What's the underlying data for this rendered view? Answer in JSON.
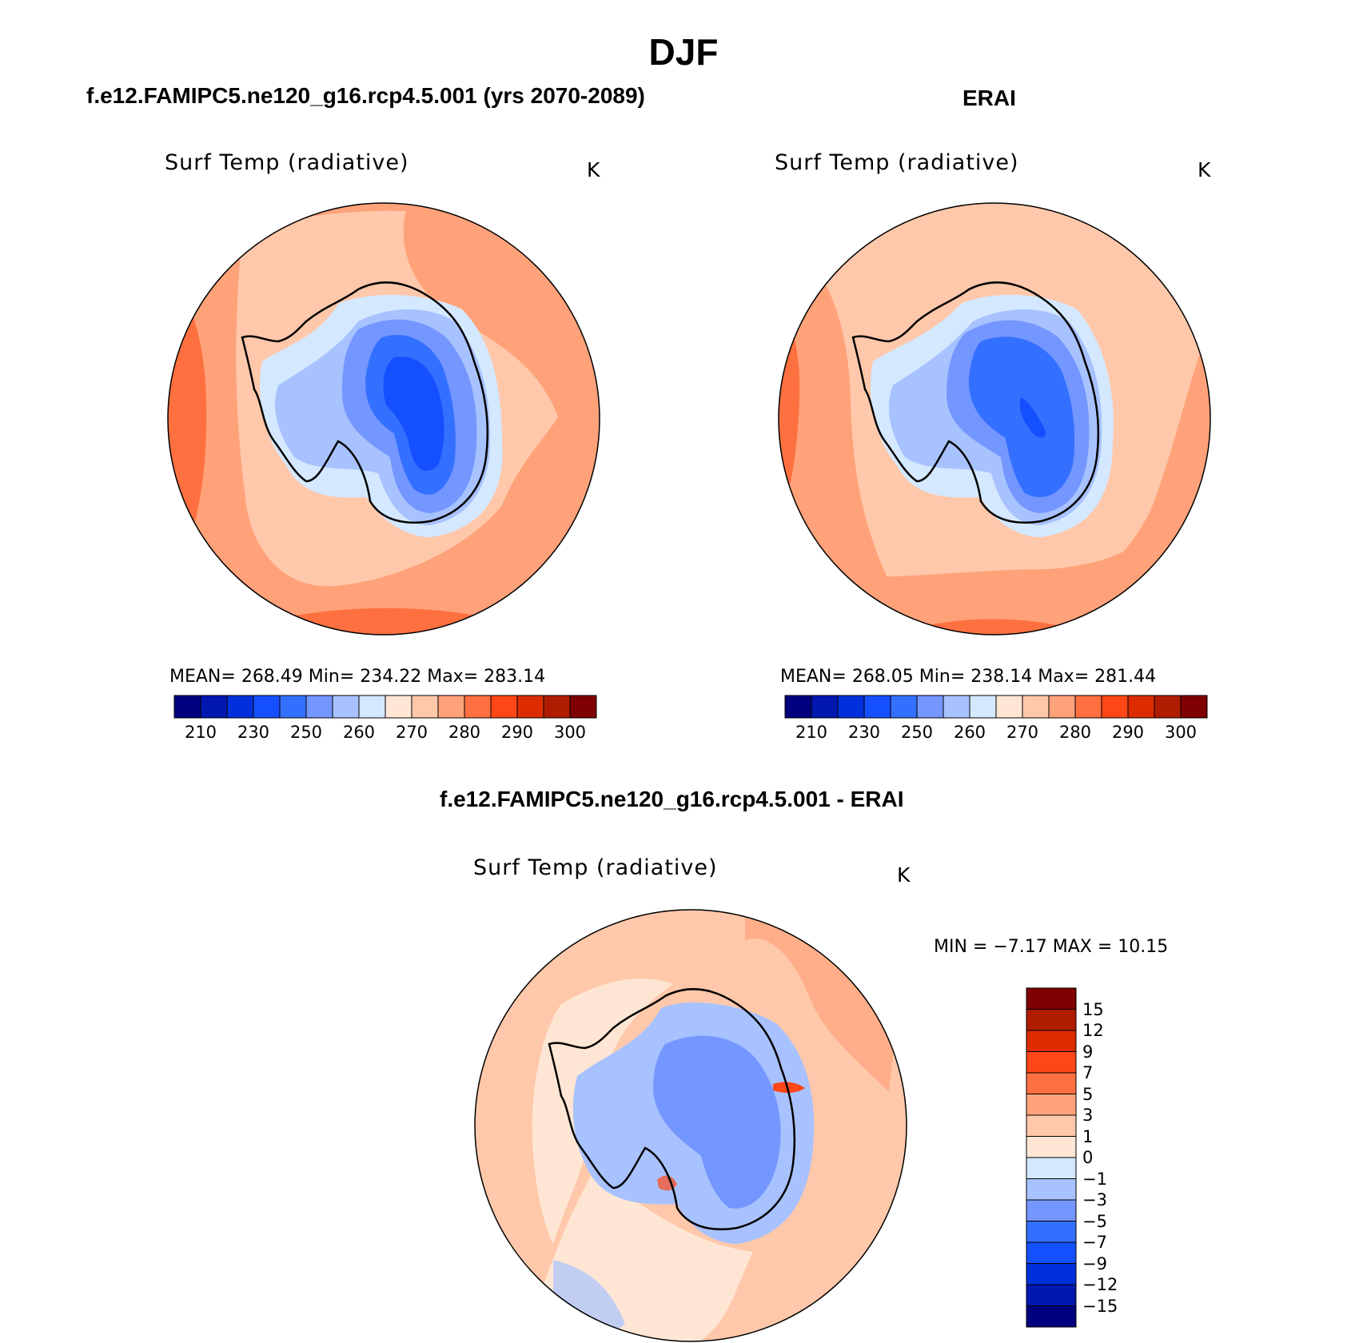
{
  "figure": {
    "season": "DJF",
    "left_subtitle": "f.e12.FAMIPC5.ne120_g16.rcp4.5.001 (yrs 2070-2089)",
    "right_subtitle": "ERAI",
    "diff_subtitle": "f.e12.FAMIPC5.ne120_g16.rcp4.5.001 - ERAI"
  },
  "panels": {
    "model": {
      "title": "Surf Temp (radiative)",
      "units": "K",
      "stats": "MEAN=  268.49   Min=  234.22   Max=  283.14"
    },
    "obs": {
      "title": "Surf Temp (radiative)",
      "units": "K",
      "stats": "MEAN=  268.05   Min=  238.14   Max=  281.44"
    },
    "diff": {
      "title": "Surf Temp (radiative)",
      "units": "K",
      "minmax": "MIN =   −7.17  MAX =   10.15"
    }
  },
  "colorbars": {
    "abs_colors": [
      "#00007f",
      "#0018b0",
      "#0030dc",
      "#1450ff",
      "#3470ff",
      "#7496ff",
      "#a8c2ff",
      "#d4e8ff",
      "#ffe6d4",
      "#ffc8aa",
      "#ffa27a",
      "#ff7040",
      "#ff4616",
      "#dc2c00",
      "#b01c00",
      "#7f0000"
    ],
    "abs_ticks": [
      "210",
      "230",
      "250",
      "260",
      "270",
      "280",
      "290",
      "300"
    ],
    "diff_colors": [
      "#00007f",
      "#0018b0",
      "#0030dc",
      "#1450ff",
      "#3470ff",
      "#7496ff",
      "#a8c2ff",
      "#d4e8ff",
      "#ffe6d4",
      "#ffc8aa",
      "#ffa27a",
      "#ff7040",
      "#ff4616",
      "#dc2c00",
      "#b01c00",
      "#7f0000"
    ],
    "diff_ticks": [
      "15",
      "12",
      "9",
      "7",
      "5",
      "3",
      "1",
      "0",
      "−1",
      "−3",
      "−5",
      "−7",
      "−9",
      "−12",
      "−15"
    ]
  },
  "map_colors": {
    "ocean_outer": "#ffa27a",
    "ocean_warm": "#ff7040",
    "ocean_mid": "#ffc8aa",
    "ice_pale": "#d4e8ff",
    "ice_light": "#a8c2ff",
    "ice_mid": "#7496ff",
    "ice_core": "#3470ff",
    "ice_deep": "#1450ff",
    "diff_bg": "#ffc8aa",
    "diff_pale": "#ffe6d4",
    "diff_blue": "#a8c2ff",
    "diff_blue2": "#7496ff",
    "diff_red": "#ff4616"
  }
}
